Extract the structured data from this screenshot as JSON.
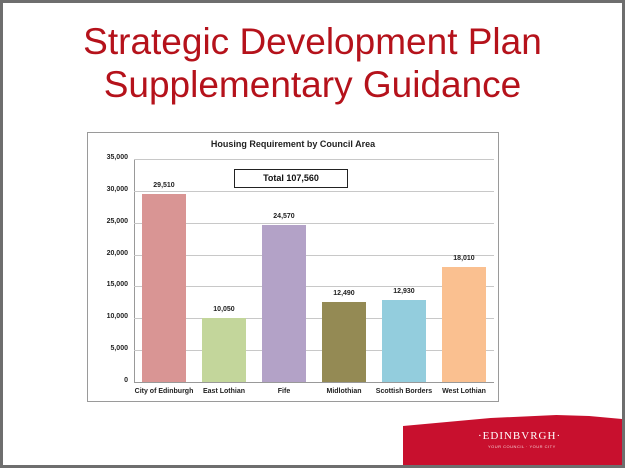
{
  "slide": {
    "title_line1": "Strategic Development Plan",
    "title_line2": "Supplementary Guidance",
    "logo_text": "·EDINBVRGH·",
    "logo_subtext": "YOUR COUNCIL · YOUR CITY"
  },
  "colors": {
    "title": "#b5121b",
    "logo_bg": "#c8102e"
  },
  "chart_data": {
    "type": "bar",
    "title": "Housing Requirement by Council Area",
    "annotation": "Total  107,560",
    "categories": [
      "City of Edinburgh",
      "East Lothian",
      "Fife",
      "Midlothian",
      "Scottish Borders",
      "West Lothian"
    ],
    "values": [
      29510,
      10050,
      24570,
      12490,
      12930,
      18010
    ],
    "value_labels": [
      "29,510",
      "10,050",
      "24,570",
      "12,490",
      "12,930",
      "18,010"
    ],
    "bar_colors": [
      "#d99594",
      "#c3d69b",
      "#b3a2c7",
      "#948a54",
      "#93cddd",
      "#fac090"
    ],
    "xlabel": "",
    "ylabel": "",
    "ylim": [
      0,
      35000
    ],
    "yticks": [
      "35,000",
      "30,000",
      "25,000",
      "20,000",
      "15,000",
      "10,000",
      "5,000",
      "0"
    ],
    "grid": true,
    "legend": "none"
  }
}
